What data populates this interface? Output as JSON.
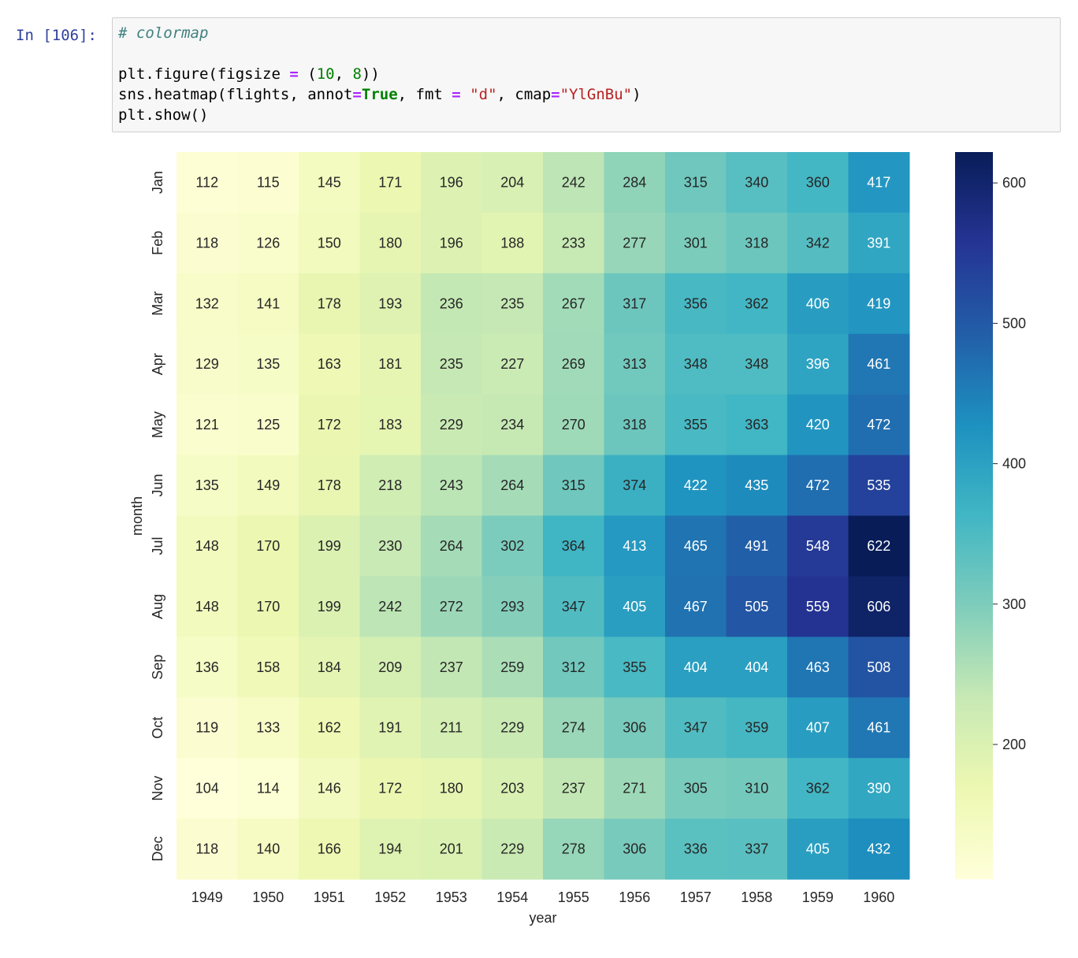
{
  "cell": {
    "prompt": "In [106]:",
    "code": {
      "comment": "# colormap",
      "line1": {
        "a": "plt.figure(figsize ",
        "op": "=",
        "b": " (",
        "n1": "10",
        "c": ", ",
        "n2": "8",
        "d": "))"
      },
      "line2": {
        "a": "sns.heatmap(flights, annot",
        "op1": "=",
        "kw": "True",
        "b": ", fmt ",
        "op2": "=",
        "c": " ",
        "s1": "\"d\"",
        "d": ", cmap",
        "op3": "=",
        "s2": "\"YlGnBu\"",
        "e": ")"
      },
      "line3": "plt.show()"
    }
  },
  "chart_data": {
    "type": "heatmap",
    "xlabel": "year",
    "ylabel": "month",
    "x": [
      "1949",
      "1950",
      "1951",
      "1952",
      "1953",
      "1954",
      "1955",
      "1956",
      "1957",
      "1958",
      "1959",
      "1960"
    ],
    "y": [
      "Jan",
      "Feb",
      "Mar",
      "Apr",
      "May",
      "Jun",
      "Jul",
      "Aug",
      "Sep",
      "Oct",
      "Nov",
      "Dec"
    ],
    "values": [
      [
        112,
        115,
        145,
        171,
        196,
        204,
        242,
        284,
        315,
        340,
        360,
        417
      ],
      [
        118,
        126,
        150,
        180,
        196,
        188,
        233,
        277,
        301,
        318,
        342,
        391
      ],
      [
        132,
        141,
        178,
        193,
        236,
        235,
        267,
        317,
        356,
        362,
        406,
        419
      ],
      [
        129,
        135,
        163,
        181,
        235,
        227,
        269,
        313,
        348,
        348,
        396,
        461
      ],
      [
        121,
        125,
        172,
        183,
        229,
        234,
        270,
        318,
        355,
        363,
        420,
        472
      ],
      [
        135,
        149,
        178,
        218,
        243,
        264,
        315,
        374,
        422,
        435,
        472,
        535
      ],
      [
        148,
        170,
        199,
        230,
        264,
        302,
        364,
        413,
        465,
        491,
        548,
        622
      ],
      [
        148,
        170,
        199,
        242,
        272,
        293,
        347,
        405,
        467,
        505,
        559,
        606
      ],
      [
        136,
        158,
        184,
        209,
        237,
        259,
        312,
        355,
        404,
        404,
        463,
        508
      ],
      [
        119,
        133,
        162,
        191,
        211,
        229,
        274,
        306,
        347,
        359,
        407,
        461
      ],
      [
        104,
        114,
        146,
        172,
        180,
        203,
        237,
        271,
        305,
        310,
        362,
        390
      ],
      [
        118,
        140,
        166,
        194,
        201,
        229,
        278,
        306,
        336,
        337,
        405,
        432
      ]
    ],
    "colormap": "YlGnBu",
    "vmin": 104,
    "vmax": 622,
    "colorbar_ticks": [
      200,
      300,
      400,
      500,
      600
    ],
    "grid": false
  }
}
